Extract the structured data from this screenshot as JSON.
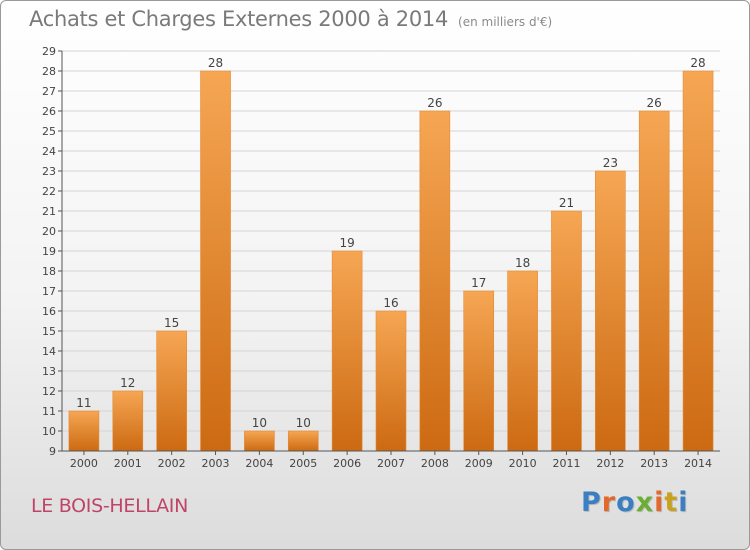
{
  "header": {
    "title": "Achats et Charges Externes 2000 à 2014",
    "subtitle": "(en milliers d'€)"
  },
  "footer": {
    "place": "LE BOIS-HELLAIN",
    "logo_letters": [
      "P",
      "r",
      "o",
      "x",
      "i",
      "t",
      "i"
    ],
    "logo_colors": [
      "#3a7fc1",
      "#e2682b",
      "#3a7fc1",
      "#6aae34",
      "#e2682b",
      "#c7a21e",
      "#3a7fc1"
    ]
  },
  "colors": {
    "bar_top": "#f6a653",
    "bar_bottom": "#cc6a12",
    "grid": "#d4d4d4",
    "axis": "#555555",
    "text": "#444444"
  },
  "chart_data": {
    "type": "bar",
    "title": "Achats et Charges Externes 2000 à 2014",
    "subtitle": "(en milliers d'€)",
    "categories": [
      "2000",
      "2001",
      "2002",
      "2003",
      "2004",
      "2005",
      "2006",
      "2007",
      "2008",
      "2009",
      "2010",
      "2011",
      "2012",
      "2013",
      "2014"
    ],
    "values": [
      11,
      12,
      15,
      28,
      10,
      10,
      19,
      16,
      26,
      17,
      18,
      21,
      23,
      26,
      28
    ],
    "ylim": [
      9,
      29
    ],
    "yticks": [
      9,
      10,
      11,
      12,
      13,
      14,
      15,
      16,
      17,
      18,
      19,
      20,
      21,
      22,
      23,
      24,
      25,
      26,
      27,
      28,
      29
    ],
    "grid": true,
    "legend": "none"
  }
}
